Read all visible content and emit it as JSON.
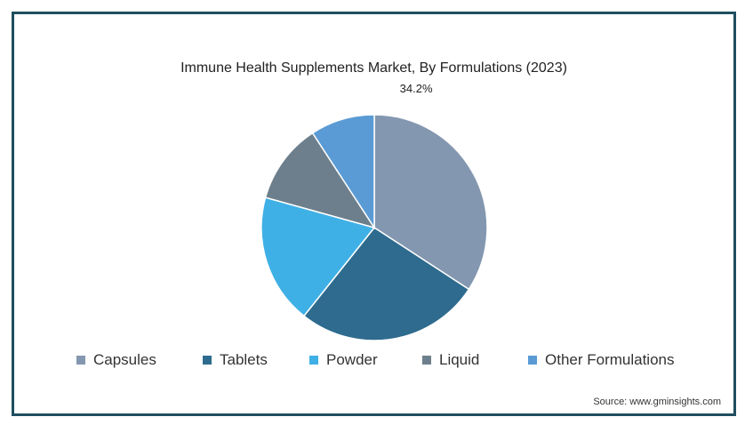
{
  "chart_data": {
    "type": "pie",
    "title": "Immune Health Supplements Market, By Formulations (2023)",
    "categories": [
      "Capsules",
      "Tablets",
      "Powder",
      "Liquid",
      "Other Formulations"
    ],
    "values": [
      34.2,
      26.5,
      18.6,
      11.5,
      9.2
    ],
    "labels": [
      "34.2%",
      "",
      "",
      "",
      ""
    ],
    "colors": [
      "#8497b0",
      "#2e6b8e",
      "#3fb0e6",
      "#6d7f8c",
      "#5b9bd5"
    ],
    "start_angle_deg": 0,
    "direction": "clockwise",
    "legend_position": "bottom"
  },
  "source": "Source: www.gminsights.com"
}
